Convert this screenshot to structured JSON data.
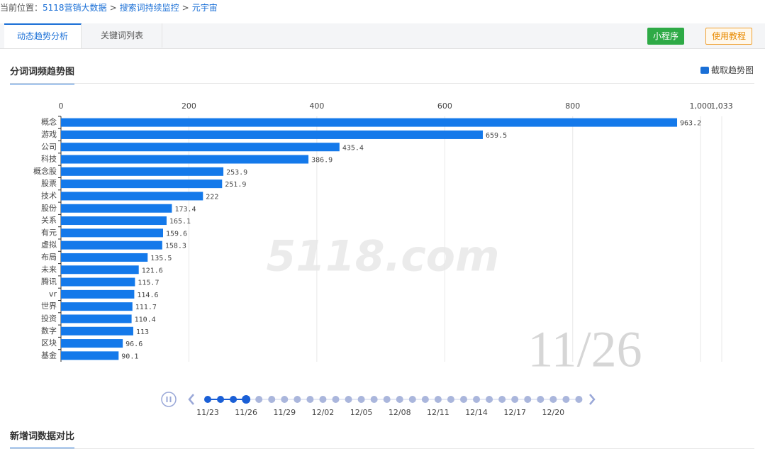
{
  "breadcrumb": {
    "prefix": "当前位置：",
    "items": [
      "5118营销大数据",
      "搜索词持续监控",
      "元宇宙"
    ],
    "separator": ">"
  },
  "tabs": [
    "动态趋势分析",
    "关键词列表"
  ],
  "buttons": {
    "mini_program": "小程序",
    "tutorial": "使用教程"
  },
  "sections": {
    "trend": "分词词频趋势图",
    "capture": "截取趋势图",
    "compare": "新增词数据对比"
  },
  "watermark": "5118.com",
  "timeline": {
    "current": "11/26",
    "labels": [
      "11/23",
      "11/26",
      "11/29",
      "12/02",
      "12/05",
      "12/08",
      "12/11",
      "12/14",
      "12/17",
      "12/20"
    ]
  },
  "chart_data": {
    "type": "bar",
    "orientation": "horizontal",
    "color": "#1479ea",
    "grid": true,
    "categories": [
      "概念",
      "游戏",
      "公司",
      "科技",
      "概念股",
      "股票",
      "技术",
      "股份",
      "关系",
      "有元",
      "虚拟",
      "布局",
      "未来",
      "腾讯",
      "vr",
      "世界",
      "投资",
      "数字",
      "区块",
      "基金"
    ],
    "values": [
      963.2,
      659.5,
      435.4,
      386.9,
      253.9,
      251.9,
      222,
      173.4,
      165.1,
      159.6,
      158.3,
      135.5,
      121.6,
      115.7,
      114.6,
      111.7,
      110.4,
      113,
      96.6,
      90.1
    ],
    "xlim": [
      0,
      1033
    ],
    "xticks": [
      0,
      200,
      400,
      600,
      800,
      {
        "value": 1000,
        "label": "1,000"
      },
      {
        "value": 1033,
        "label": "1,033"
      }
    ]
  }
}
